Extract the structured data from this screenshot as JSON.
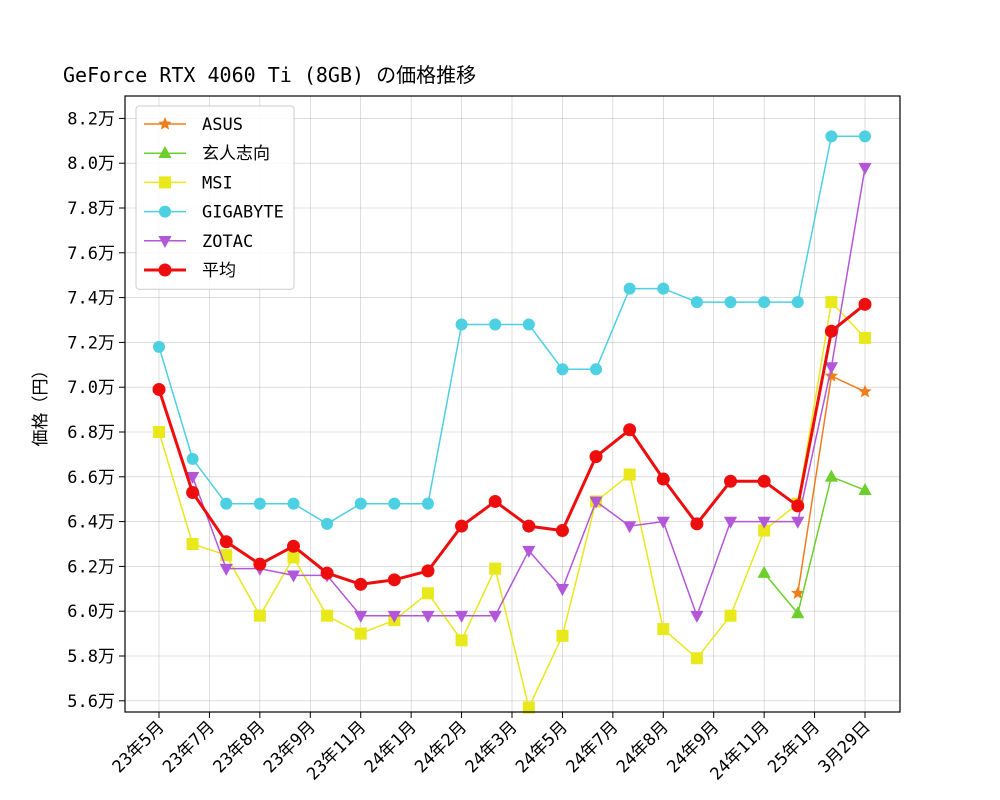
{
  "chart_data": {
    "type": "line",
    "title": "GeForce RTX 4060 Ti (8GB) の価格推移",
    "xlabel": "",
    "ylabel": "価格（円）",
    "ylim": [
      55500,
      83000
    ],
    "yticks": [
      56000,
      58000,
      60000,
      62000,
      64000,
      66000,
      68000,
      70000,
      72000,
      74000,
      76000,
      78000,
      80000,
      82000
    ],
    "ytick_labels": [
      "5.6万",
      "5.8万",
      "6.0万",
      "6.2万",
      "6.4万",
      "6.6万",
      "6.8万",
      "7.0万",
      "7.2万",
      "7.4万",
      "7.6万",
      "7.8万",
      "8.0万",
      "8.2万"
    ],
    "n_points": 22,
    "xtick_indices": [
      0,
      1.5,
      3,
      4.5,
      6,
      7.5,
      9,
      10.5,
      12,
      13.5,
      15,
      16.5,
      18,
      19.5,
      21
    ],
    "xtick_labels": [
      "23年5月",
      "23年7月",
      "23年8月",
      "23年9月",
      "23年11月",
      "24年1月",
      "24年2月",
      "24年3月",
      "24年5月",
      "24年7月",
      "24年8月",
      "24年9月",
      "24年11月",
      "25年1月",
      "3月29日"
    ],
    "grid": true,
    "legend_position": "top-left",
    "series": [
      {
        "name": "ASUS",
        "color": "#f07d1c",
        "marker": "star",
        "width": 1.5,
        "values": [
          null,
          null,
          null,
          null,
          null,
          null,
          null,
          null,
          null,
          null,
          null,
          null,
          null,
          null,
          null,
          null,
          null,
          null,
          null,
          60800,
          70500,
          69800
        ]
      },
      {
        "name": "玄人志向",
        "color": "#6ccf2b",
        "marker": "triangle-up",
        "width": 1.5,
        "values": [
          null,
          null,
          null,
          null,
          null,
          null,
          null,
          null,
          null,
          null,
          null,
          null,
          null,
          null,
          null,
          null,
          null,
          null,
          61700,
          59900,
          66000,
          65400
        ]
      },
      {
        "name": "MSI",
        "color": "#e8e81a",
        "marker": "square",
        "width": 1.5,
        "values": [
          68000,
          63000,
          62500,
          59800,
          62400,
          59800,
          59000,
          59600,
          60800,
          58700,
          61900,
          55700,
          58900,
          64900,
          66100,
          59200,
          57900,
          59800,
          63600,
          64800,
          73800,
          72200
        ]
      },
      {
        "name": "GIGABYTE",
        "color": "#4dd0e1",
        "marker": "circle",
        "width": 1.5,
        "values": [
          71800,
          66800,
          64800,
          64800,
          64800,
          63900,
          64800,
          64800,
          64800,
          72800,
          72800,
          72800,
          70800,
          70800,
          74400,
          74400,
          73800,
          73800,
          73800,
          73800,
          81200,
          81200
        ]
      },
      {
        "name": "ZOTAC",
        "color": "#b357d9",
        "marker": "triangle-down",
        "width": 1.5,
        "values": [
          null,
          66000,
          61900,
          61900,
          61600,
          61600,
          59800,
          59800,
          59800,
          59800,
          59800,
          62700,
          61000,
          64900,
          63800,
          64000,
          59800,
          64000,
          64000,
          64000,
          70900,
          79800
        ]
      },
      {
        "name": "平均",
        "color": "#ee0d0d",
        "marker": "circle",
        "width": 3,
        "values": [
          69900,
          65300,
          63100,
          62100,
          62900,
          61700,
          61200,
          61400,
          61800,
          63800,
          64900,
          63800,
          63600,
          66900,
          68100,
          65900,
          63900,
          65800,
          65800,
          64700,
          72500,
          73700
        ]
      }
    ]
  }
}
